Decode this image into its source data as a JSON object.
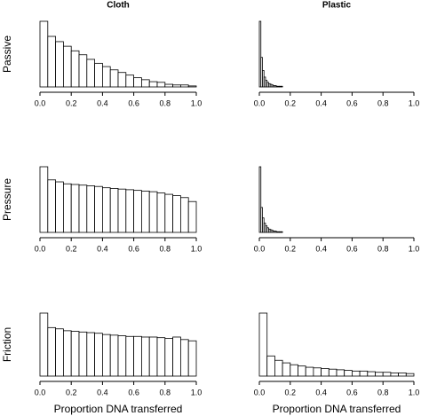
{
  "chart_data": [
    {
      "type": "histogram",
      "title": "Cloth",
      "ylabel": "Passive",
      "color": "#ffffff",
      "bins": [
        0,
        0.05,
        0.1,
        0.15,
        0.2,
        0.25,
        0.3,
        0.35,
        0.4,
        0.45,
        0.5,
        0.55,
        0.6,
        0.65,
        0.7,
        0.75,
        0.8,
        0.85,
        0.9,
        0.95,
        1
      ],
      "counts": [
        100,
        77,
        69,
        62,
        55,
        49,
        42,
        36,
        31,
        26,
        22,
        18,
        14,
        11,
        8,
        7,
        4,
        3,
        3,
        1.5
      ],
      "xlim": [
        0,
        1
      ],
      "ylim": [
        0,
        100
      ],
      "xticks": [
        {
          "value": 0,
          "label": "0.0"
        },
        0.2,
        0.4,
        0.6,
        0.8,
        {
          "value": 1,
          "label": "1.0"
        }
      ]
    },
    {
      "type": "histogram",
      "title": "Plastic",
      "color": "#ffffff",
      "bins": [
        0,
        0.01,
        0.02,
        0.03,
        0.04,
        0.05,
        0.06,
        0.07,
        0.08,
        0.09,
        0.1,
        0.11,
        0.12,
        0.13,
        0.14,
        0.15
      ],
      "counts": [
        100,
        45,
        25,
        15,
        10,
        7,
        5,
        4,
        3,
        2,
        2,
        1,
        1,
        1,
        1
      ],
      "xlim": [
        0,
        1
      ],
      "ylim": [
        0,
        100
      ],
      "xticks": [
        {
          "value": 0,
          "label": "0.0"
        },
        0.2,
        0.4,
        0.6,
        0.8,
        {
          "value": 1,
          "label": "1.0"
        }
      ]
    },
    {
      "type": "histogram",
      "ylabel": "Pressure",
      "color": "#ffffff",
      "bins": [
        0,
        0.05,
        0.1,
        0.15,
        0.2,
        0.25,
        0.3,
        0.35,
        0.4,
        0.45,
        0.5,
        0.55,
        0.6,
        0.65,
        0.7,
        0.75,
        0.8,
        0.85,
        0.9,
        0.95,
        1
      ],
      "counts": [
        100,
        80,
        77,
        74,
        73,
        72,
        71,
        70,
        68,
        67,
        66,
        65,
        64,
        63,
        62,
        60,
        58,
        56,
        53,
        47
      ],
      "xlim": [
        0,
        1
      ],
      "ylim": [
        0,
        100
      ],
      "xticks": [
        {
          "value": 0,
          "label": "0.0"
        },
        0.2,
        0.4,
        0.6,
        0.8,
        {
          "value": 1,
          "label": "1.0"
        }
      ]
    },
    {
      "type": "histogram",
      "color": "#ffffff",
      "bins": [
        0,
        0.01,
        0.02,
        0.03,
        0.04,
        0.05,
        0.06,
        0.07,
        0.08,
        0.09,
        0.1,
        0.11,
        0.12,
        0.13,
        0.14,
        0.15
      ],
      "counts": [
        100,
        38,
        22,
        14,
        10,
        7,
        5,
        4,
        3,
        2,
        2,
        1,
        1,
        1,
        1
      ],
      "xlim": [
        0,
        1
      ],
      "ylim": [
        0,
        100
      ],
      "xticks": [
        {
          "value": 0,
          "label": "0.0"
        },
        0.2,
        0.4,
        0.6,
        0.8,
        {
          "value": 1,
          "label": "1.0"
        }
      ]
    },
    {
      "type": "histogram",
      "ylabel": "Friction",
      "xlabel": "Proportion DNA transferred",
      "color": "#ffffff",
      "bins": [
        0,
        0.05,
        0.1,
        0.15,
        0.2,
        0.25,
        0.3,
        0.35,
        0.4,
        0.45,
        0.5,
        0.55,
        0.6,
        0.65,
        0.7,
        0.75,
        0.8,
        0.85,
        0.9,
        0.95,
        1
      ],
      "counts": [
        100,
        77,
        75,
        72,
        71,
        70,
        69,
        68,
        66,
        65,
        64,
        63,
        63,
        62,
        62,
        61,
        60,
        62,
        58,
        56
      ],
      "xlim": [
        0,
        1
      ],
      "ylim": [
        0,
        100
      ],
      "xticks": [
        {
          "value": 0,
          "label": "0.0"
        },
        0.2,
        0.4,
        0.6,
        0.8,
        {
          "value": 1,
          "label": "1.0"
        }
      ]
    },
    {
      "type": "histogram",
      "xlabel": "Proportion DNA transferred",
      "color": "#ffffff",
      "bins": [
        0,
        0.05,
        0.1,
        0.15,
        0.2,
        0.25,
        0.3,
        0.35,
        0.4,
        0.45,
        0.5,
        0.55,
        0.6,
        0.65,
        0.7,
        0.75,
        0.8,
        0.85,
        0.9,
        0.95,
        1
      ],
      "counts": [
        100,
        32,
        25,
        21,
        18,
        16,
        14,
        13,
        12,
        11,
        10,
        9,
        8,
        8,
        7,
        6,
        6,
        5,
        5,
        4
      ],
      "xlim": [
        0,
        1
      ],
      "ylim": [
        0,
        100
      ],
      "xticks": [
        {
          "value": 0,
          "label": "0.0"
        },
        0.2,
        0.4,
        0.6,
        0.8,
        {
          "value": 1,
          "label": "1.0"
        }
      ]
    }
  ]
}
